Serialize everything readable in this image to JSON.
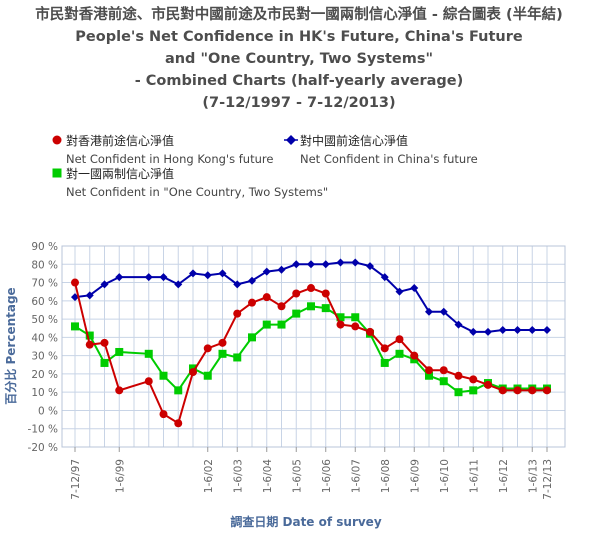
{
  "title_lines": [
    "市民對香港前途、市民對中國前途及市民對一國兩制信心淨值 - 綜合圖表 (半年結)",
    "People's Net Confidence in HK's Future, China's Future",
    "and \"One Country, Two Systems\"",
    "- Combined Charts (half-yearly average)",
    "(7-12/1997 - 7-12/2013)"
  ],
  "legend": [
    {
      "zh": "對香港前途信心淨值",
      "en": "Net Confident in Hong Kong's future",
      "color": "#cc0000",
      "marker": "circle"
    },
    {
      "zh": "對中國前途信心淨值",
      "en": "Net Confident in China's future",
      "color": "#0000aa",
      "marker": "diamond"
    },
    {
      "zh": "對一國兩制信心淨值",
      "en": "Net Confident in \"One Country, Two Systems\"",
      "color": "#00cc00",
      "marker": "square"
    }
  ],
  "colors": {
    "grid": "#c8d4e6",
    "axis_text": "#666666",
    "axis_title": "#4a6a9a"
  },
  "chart_data": {
    "type": "line",
    "title": "People's Net Confidence in HK's Future, China's Future and \"One Country, Two Systems\" - Combined Charts (half-yearly average)",
    "xlabel": "調查日期 Date of survey",
    "ylabel": "百分比 Percentage",
    "ylim": [
      -20,
      90
    ],
    "yticks": [
      "-20 %",
      "-10 %",
      "0 %",
      "10 %",
      "20 %",
      "30 %",
      "40 %",
      "50 %",
      "60 %",
      "70 %",
      "80 %",
      "90 %"
    ],
    "xtick_labels": [
      "7-12/97",
      "1-6/99",
      "1-6/02",
      "1-6/03",
      "1-6/04",
      "1-6/05",
      "1-6/06",
      "1-6/07",
      "1-6/08",
      "1-6/09",
      "1-6/10",
      "1-6/11",
      "1-6/12",
      "1-6/13",
      "7-12/13"
    ],
    "xtick_periods": [
      0,
      3,
      9,
      11,
      13,
      15,
      17,
      19,
      21,
      23,
      25,
      27,
      29,
      31,
      32
    ],
    "n_periods": 33,
    "grid": true,
    "legend_position": "top-left",
    "series": [
      {
        "name": "對香港前途信心淨值",
        "periods": [
          0,
          1,
          2,
          3,
          5,
          6,
          7,
          8,
          9,
          10,
          11,
          12,
          13,
          14,
          15,
          16,
          17,
          18,
          19,
          20,
          21,
          22,
          23,
          24,
          25,
          26,
          27,
          28,
          29,
          30,
          31,
          32
        ],
        "values": [
          70,
          36,
          37,
          11,
          16,
          -2,
          -7,
          21,
          34,
          37,
          53,
          59,
          62,
          57,
          64,
          67,
          64,
          47,
          46,
          43,
          34,
          39,
          30,
          22,
          22,
          19,
          17,
          14,
          11,
          11,
          11,
          11
        ]
      },
      {
        "name": "對中國前途信心淨值",
        "periods": [
          0,
          1,
          2,
          3,
          5,
          6,
          7,
          8,
          9,
          10,
          11,
          12,
          13,
          14,
          15,
          16,
          17,
          18,
          19,
          20,
          21,
          22,
          23,
          24,
          25,
          26,
          27,
          28,
          29,
          30,
          31,
          32
        ],
        "values": [
          62,
          63,
          69,
          73,
          73,
          73,
          69,
          75,
          74,
          75,
          69,
          71,
          76,
          77,
          80,
          80,
          80,
          81,
          81,
          79,
          73,
          65,
          67,
          54,
          54,
          47,
          43,
          43,
          44,
          44,
          44,
          44
        ]
      },
      {
        "name": "對一國兩制信心淨值",
        "periods": [
          0,
          1,
          2,
          3,
          5,
          6,
          7,
          8,
          9,
          10,
          11,
          12,
          13,
          14,
          15,
          16,
          17,
          18,
          19,
          20,
          21,
          22,
          23,
          24,
          25,
          26,
          27,
          28,
          29,
          30,
          31,
          32
        ],
        "values": [
          46,
          41,
          26,
          32,
          31,
          19,
          11,
          23,
          19,
          31,
          29,
          40,
          47,
          47,
          53,
          57,
          56,
          51,
          51,
          42,
          26,
          31,
          28,
          19,
          16,
          10,
          11,
          15,
          12,
          12,
          12,
          12
        ]
      }
    ]
  }
}
